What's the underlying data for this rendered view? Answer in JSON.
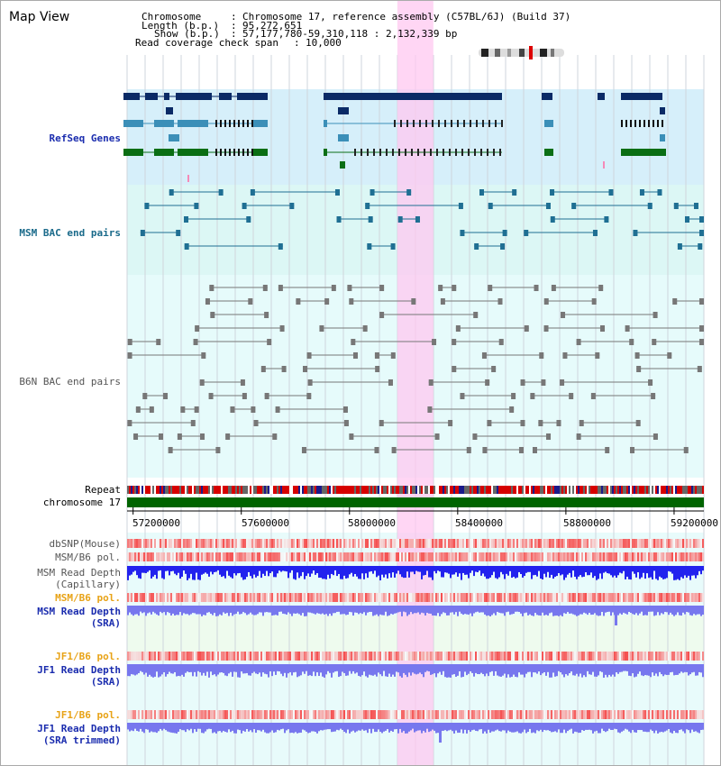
{
  "view": {
    "title": "Map View"
  },
  "info": {
    "chromosome_key": "Chromosome",
    "chromosome_value": "Chromosome 17, reference assembly (C57BL/6J) (Build 37)",
    "length_key": "Length (b.p.)",
    "length_value": "95,272,651",
    "show_key": "Show (b.p.)",
    "show_value": "57,177,780-59,310,118 : 2,132,339 bp",
    "coverage_key": "Read coverage check span",
    "coverage_value": "10,000"
  },
  "tracks": {
    "refseq": "RefSeq Genes",
    "msm_bac": "MSM BAC end pairs",
    "b6n_bac": "B6N BAC end pairs",
    "repeat": "Repeat",
    "chromosome": "chromosome 17",
    "dbsnp": "dbSNP(Mouse)",
    "msm_b6_pol_1": "MSM/B6 pol.",
    "msm_depth_cap_1": "MSM Read Depth",
    "msm_depth_cap_2": "(Capillary)",
    "msm_b6_pol_2": "MSM/B6 pol.",
    "msm_depth_sra_1": "MSM Read Depth",
    "msm_depth_sra_2": "(SRA)",
    "jf1_b6_pol_1": "JF1/B6 pol.",
    "jf1_depth_sra_1": "JF1 Read Depth",
    "jf1_depth_sra_2": "(SRA)",
    "jf1_b6_pol_2": "JF1/B6 pol.",
    "jf1_depth_trim_1": "JF1 Read Depth",
    "jf1_depth_trim_2": "(SRA trimmed)"
  },
  "axis": {
    "ticks": [
      "57200000",
      "57600000",
      "58000000",
      "58400000",
      "58800000",
      "59200000"
    ],
    "tick_values": [
      57200000,
      57600000,
      58000000,
      58400000,
      58800000,
      59200000
    ],
    "range": [
      57177780,
      59310118
    ]
  },
  "highlight": {
    "start": 58177000,
    "end": 58310000
  },
  "colors": {
    "refseq_navy": "#0a2a66",
    "refseq_teal": "#3b8fb8",
    "refseq_green": "#0a6e14",
    "msm_bac": "#1f6f93",
    "b6n_bac": "#777777",
    "chromosome": "#006400",
    "depth_capillary": "#2222ee",
    "depth_sra": "#7777ee",
    "highlight": "#ffc8f0"
  }
}
